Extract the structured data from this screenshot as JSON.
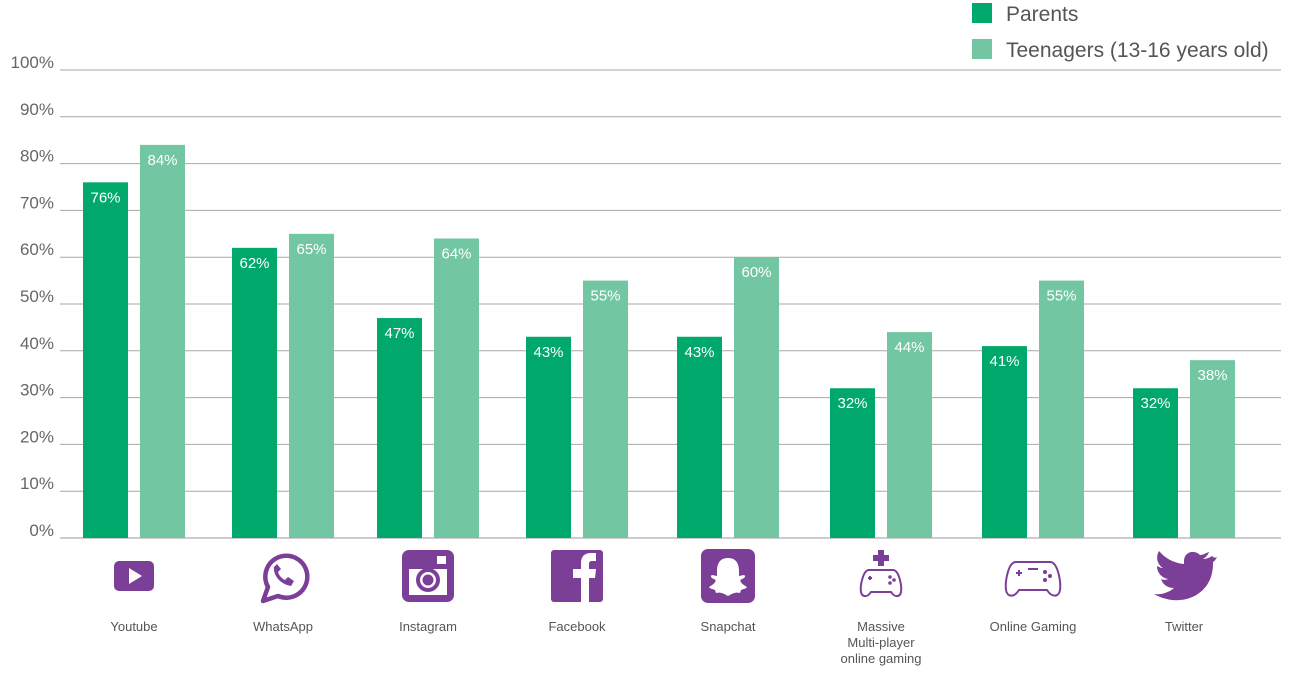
{
  "chart_data": {
    "type": "bar",
    "ylim": [
      0,
      100
    ],
    "yticks": [
      "0%",
      "10%",
      "20%",
      "30%",
      "40%",
      "50%",
      "60%",
      "70%",
      "80%",
      "90%",
      "100%"
    ],
    "categories": [
      "Youtube",
      "WhatsApp",
      "Instagram",
      "Facebook",
      "Snapchat",
      "Massive Multi-player online gaming",
      "Online Gaming",
      "Twitter"
    ],
    "category_lines": [
      [
        "Youtube"
      ],
      [
        "WhatsApp"
      ],
      [
        "Instagram"
      ],
      [
        "Facebook"
      ],
      [
        "Snapchat"
      ],
      [
        "Massive",
        "Multi-player",
        "online gaming"
      ],
      [
        "Online Gaming"
      ],
      [
        "Twitter"
      ]
    ],
    "icons": [
      "youtube-icon",
      "whatsapp-icon",
      "instagram-icon",
      "facebook-icon",
      "snapchat-icon",
      "mmo-gaming-icon",
      "online-gaming-icon",
      "twitter-icon"
    ],
    "series": [
      {
        "name": "Parents",
        "color": "#00a86b",
        "values": [
          76,
          62,
          47,
          43,
          43,
          32,
          41,
          32
        ],
        "labels": [
          "76%",
          "62%",
          "47%",
          "43%",
          "43%",
          "32%",
          "41%",
          "32%"
        ]
      },
      {
        "name": "Teenagers (13-16 years old)",
        "color": "#72c6a1",
        "values": [
          84,
          65,
          64,
          55,
          60,
          44,
          55,
          38
        ],
        "labels": [
          "84%",
          "65%",
          "64%",
          "55%",
          "60%",
          "44%",
          "55%",
          "38%"
        ]
      }
    ],
    "icon_color": "#7b3f98",
    "grid": true,
    "legend_position": "top-right"
  }
}
